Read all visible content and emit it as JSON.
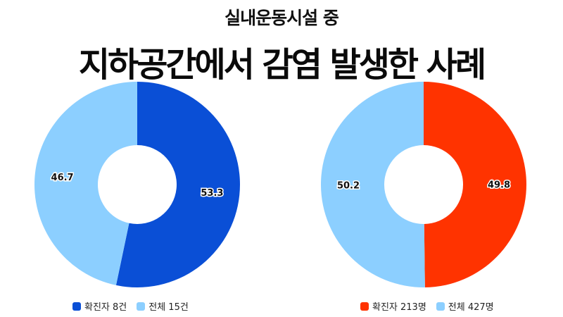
{
  "header": {
    "subtitle": "실내운동시설 중",
    "title": "지하공간에서 감염 발생한 사례"
  },
  "chart_data": [
    {
      "type": "pie",
      "donut": true,
      "slices": [
        {
          "label": "확진자 8건",
          "value": 53.3,
          "color": "#0a4fd6"
        },
        {
          "label": "전체 15건",
          "value": 46.7,
          "color": "#8ccfff"
        }
      ],
      "legend_position": "bottom"
    },
    {
      "type": "pie",
      "donut": true,
      "slices": [
        {
          "label": "확진자 213명",
          "value": 49.8,
          "color": "#ff3300"
        },
        {
          "label": "전체 427명",
          "value": 50.2,
          "color": "#8ccfff"
        }
      ],
      "legend_position": "bottom"
    }
  ]
}
